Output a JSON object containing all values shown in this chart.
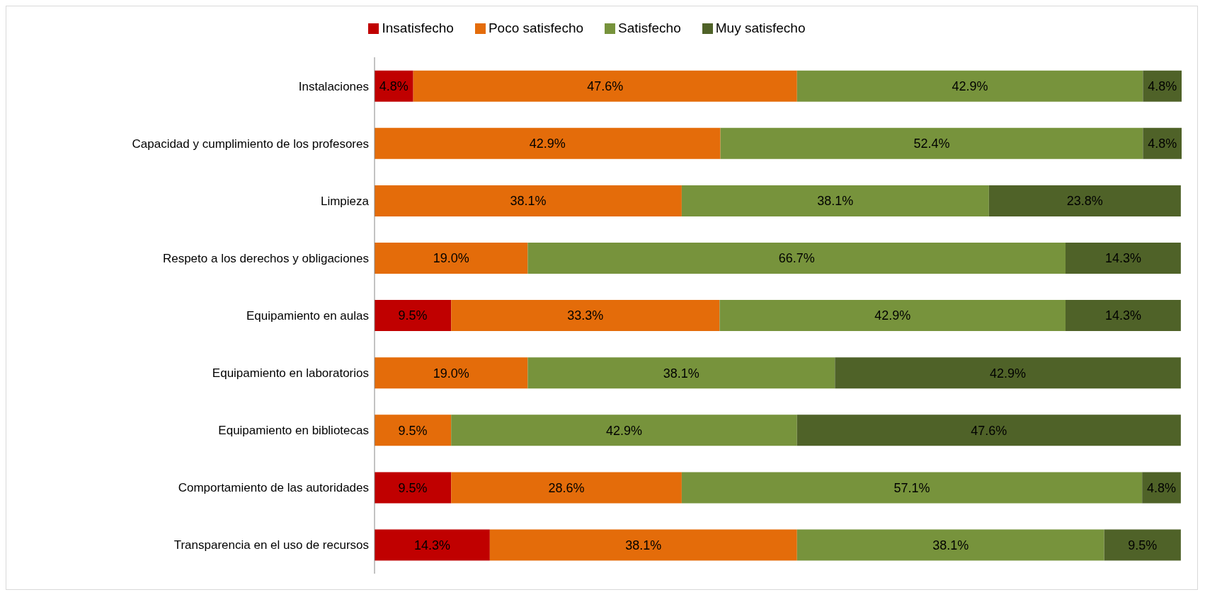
{
  "chart_data": {
    "type": "bar",
    "orientation": "horizontal",
    "stacked": true,
    "legend": "top",
    "grid": false,
    "categories": [
      "Instalaciones",
      "Capacidad y cumplimiento de los profesores",
      "Limpieza",
      "Respeto a los derechos y obligaciones",
      "Equipamiento en aulas",
      "Equipamiento en laboratorios",
      "Equipamiento en bibliotecas",
      "Comportamiento de las autoridades",
      "Transparencia en el uso de recursos"
    ],
    "series": [
      {
        "name": "Insatisfecho",
        "color": "#c00000",
        "values": [
          4.8,
          null,
          null,
          null,
          9.5,
          null,
          null,
          9.5,
          14.3
        ],
        "value_labels": [
          "4.8%",
          null,
          null,
          null,
          "9.5%",
          null,
          null,
          "9.5%",
          "14.3%"
        ]
      },
      {
        "name": "Poco satisfecho",
        "color": "#e46c0a",
        "values": [
          47.6,
          42.9,
          38.1,
          19.0,
          33.3,
          19.0,
          9.5,
          28.6,
          38.1
        ],
        "value_labels": [
          "47.6%",
          "42.9%",
          "38.1%",
          "19.0%",
          "33.3%",
          "19.0%",
          "9.5%",
          "28.6%",
          "38.1%"
        ]
      },
      {
        "name": "Satisfecho",
        "color": "#77933c",
        "values": [
          42.9,
          52.4,
          38.1,
          66.7,
          42.9,
          38.1,
          42.9,
          57.1,
          38.1
        ],
        "value_labels": [
          "42.9%",
          "52.4%",
          "38.1%",
          "66.7%",
          "42.9%",
          "38.1%",
          "42.9%",
          "57.1%",
          "38.1%"
        ]
      },
      {
        "name": "Muy satisfecho",
        "color": "#4f6228",
        "values": [
          4.8,
          4.8,
          23.8,
          14.3,
          14.3,
          42.9,
          47.6,
          4.8,
          9.5
        ],
        "value_labels": [
          "4.8%",
          "4.8%",
          "23.8%",
          "14.3%",
          "14.3%",
          "42.9%",
          "47.6%",
          "4.8%",
          "9.5%"
        ]
      }
    ]
  }
}
